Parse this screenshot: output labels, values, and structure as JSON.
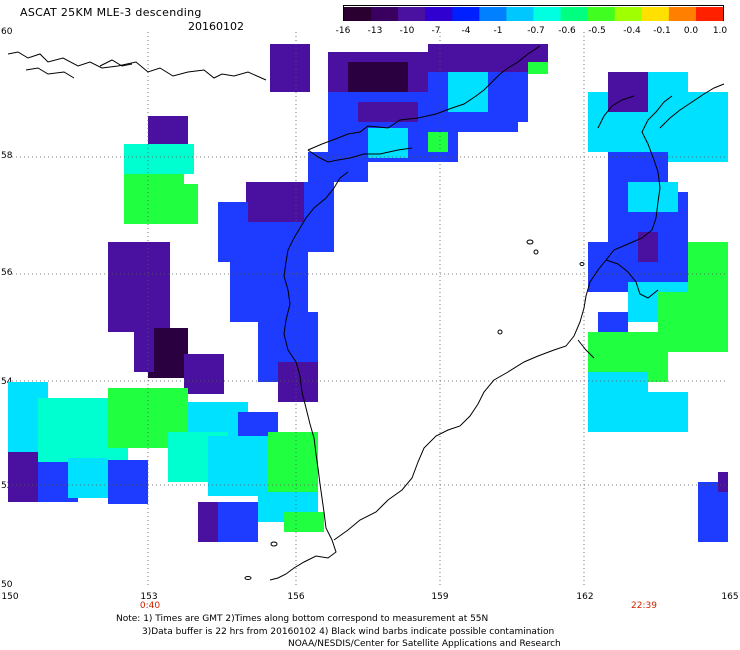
{
  "header": {
    "title": "ASCAT 25KM MLE-3 descending",
    "date": "20160102"
  },
  "colorbar": {
    "labels": [
      "-16",
      "-13",
      "-10",
      "-7",
      "-4",
      "-1",
      "-0.7",
      "-0.6",
      "-0.5",
      "-0.4",
      "-0.1",
      "0.0",
      "1.0"
    ],
    "colors": [
      "#2a0030",
      "#3a0060",
      "#4a10a0",
      "#3000d0",
      "#0020ff",
      "#0080ff",
      "#00c8ff",
      "#00ffe0",
      "#00ff80",
      "#40ff20",
      "#a0ff00",
      "#ffe000",
      "#ff8000",
      "#ff2000"
    ]
  },
  "axes": {
    "y_labels": [
      "60",
      "58",
      "56",
      "54",
      "52",
      "50"
    ],
    "x_labels": [
      "150",
      "153",
      "156",
      "159",
      "162",
      "165"
    ]
  },
  "times": {
    "left": "0:40",
    "right": "22:39"
  },
  "notes": {
    "line1": "Note: 1) Times are GMT 2)Times along bottom correspond to measurement at 55N",
    "line2": "3)Data buffer is 22 hrs from 20160102 4) Black wind barbs indicate possible contamination",
    "line3": "NOAA/NESDIS/Center for Satellite Applications and Research"
  },
  "map_features": {
    "land": "Kamchatka Peninsula and Sea of Okhotsk coastline",
    "legend_colors": {
      "deep": "#2a0040",
      "purple": "#4a10a0",
      "blue": "#1e3cff",
      "cyan": "#00e0ff",
      "teal": "#00ffd0",
      "green": "#20ff40"
    }
  }
}
